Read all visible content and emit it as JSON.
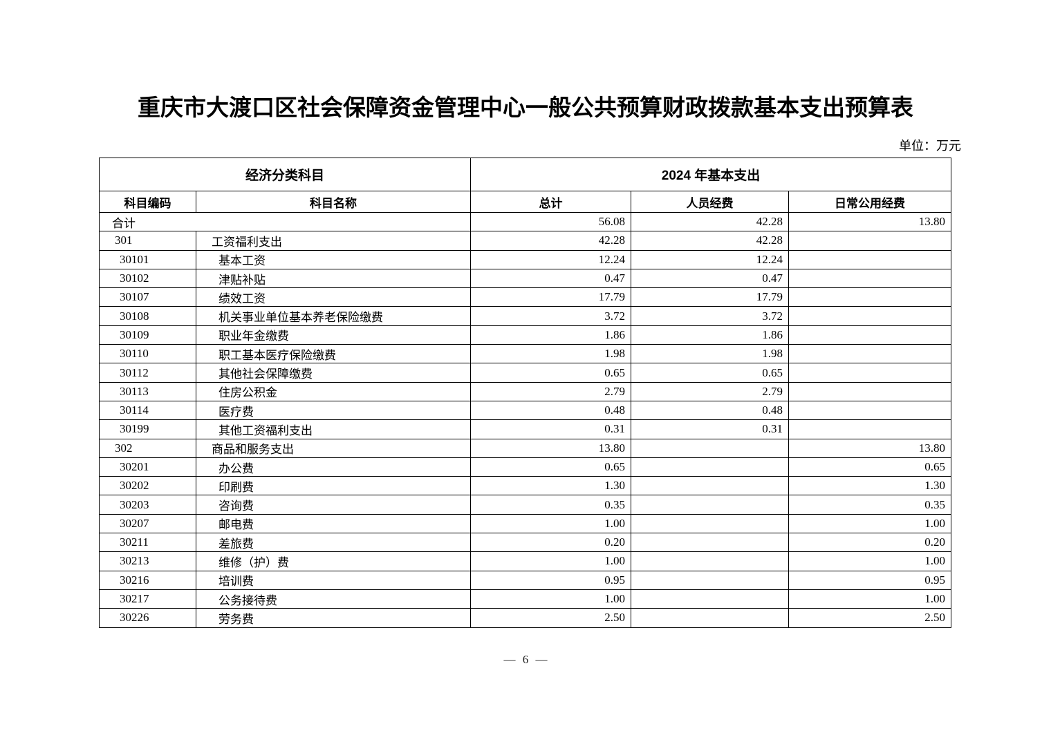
{
  "page": {
    "title": "重庆市大渡口区社会保障资金管理中心一般公共预算财政拨款基本支出预算表",
    "unit_label": "单位：万元",
    "footer_page_number": "— 6 —"
  },
  "table": {
    "group_header": {
      "left": "经济分类科目",
      "right": "2024 年基本支出"
    },
    "columns": {
      "code": "科目编码",
      "name": "科目名称",
      "total": "总计",
      "personnel": "人员经费",
      "daily": "日常公用经费"
    },
    "rows": [
      {
        "level": "total",
        "code": "合计",
        "name": "",
        "total": "56.08",
        "personnel": "42.28",
        "daily": "13.80"
      },
      {
        "level": "category",
        "code": "301",
        "name": "工资福利支出",
        "total": "42.28",
        "personnel": "42.28",
        "daily": ""
      },
      {
        "level": "item",
        "code": "30101",
        "name": "基本工资",
        "total": "12.24",
        "personnel": "12.24",
        "daily": ""
      },
      {
        "level": "item",
        "code": "30102",
        "name": "津贴补贴",
        "total": "0.47",
        "personnel": "0.47",
        "daily": ""
      },
      {
        "level": "item",
        "code": "30107",
        "name": "绩效工资",
        "total": "17.79",
        "personnel": "17.79",
        "daily": ""
      },
      {
        "level": "item",
        "code": "30108",
        "name": "机关事业单位基本养老保险缴费",
        "total": "3.72",
        "personnel": "3.72",
        "daily": ""
      },
      {
        "level": "item",
        "code": "30109",
        "name": "职业年金缴费",
        "total": "1.86",
        "personnel": "1.86",
        "daily": ""
      },
      {
        "level": "item",
        "code": "30110",
        "name": "职工基本医疗保险缴费",
        "total": "1.98",
        "personnel": "1.98",
        "daily": ""
      },
      {
        "level": "item",
        "code": "30112",
        "name": "其他社会保障缴费",
        "total": "0.65",
        "personnel": "0.65",
        "daily": ""
      },
      {
        "level": "item",
        "code": "30113",
        "name": "住房公积金",
        "total": "2.79",
        "personnel": "2.79",
        "daily": ""
      },
      {
        "level": "item",
        "code": "30114",
        "name": "医疗费",
        "total": "0.48",
        "personnel": "0.48",
        "daily": ""
      },
      {
        "level": "item",
        "code": "30199",
        "name": "其他工资福利支出",
        "total": "0.31",
        "personnel": "0.31",
        "daily": ""
      },
      {
        "level": "category",
        "code": "302",
        "name": "商品和服务支出",
        "total": "13.80",
        "personnel": "",
        "daily": "13.80"
      },
      {
        "level": "item",
        "code": "30201",
        "name": "办公费",
        "total": "0.65",
        "personnel": "",
        "daily": "0.65"
      },
      {
        "level": "item",
        "code": "30202",
        "name": "印刷费",
        "total": "1.30",
        "personnel": "",
        "daily": "1.30"
      },
      {
        "level": "item",
        "code": "30203",
        "name": "咨询费",
        "total": "0.35",
        "personnel": "",
        "daily": "0.35"
      },
      {
        "level": "item",
        "code": "30207",
        "name": "邮电费",
        "total": "1.00",
        "personnel": "",
        "daily": "1.00"
      },
      {
        "level": "item",
        "code": "30211",
        "name": "差旅费",
        "total": "0.20",
        "personnel": "",
        "daily": "0.20"
      },
      {
        "level": "item",
        "code": "30213",
        "name": "维修（护）费",
        "total": "1.00",
        "personnel": "",
        "daily": "1.00"
      },
      {
        "level": "item",
        "code": "30216",
        "name": "培训费",
        "total": "0.95",
        "personnel": "",
        "daily": "0.95"
      },
      {
        "level": "item",
        "code": "30217",
        "name": "公务接待费",
        "total": "1.00",
        "personnel": "",
        "daily": "1.00"
      },
      {
        "level": "item",
        "code": "30226",
        "name": "劳务费",
        "total": "2.50",
        "personnel": "",
        "daily": "2.50"
      }
    ]
  }
}
